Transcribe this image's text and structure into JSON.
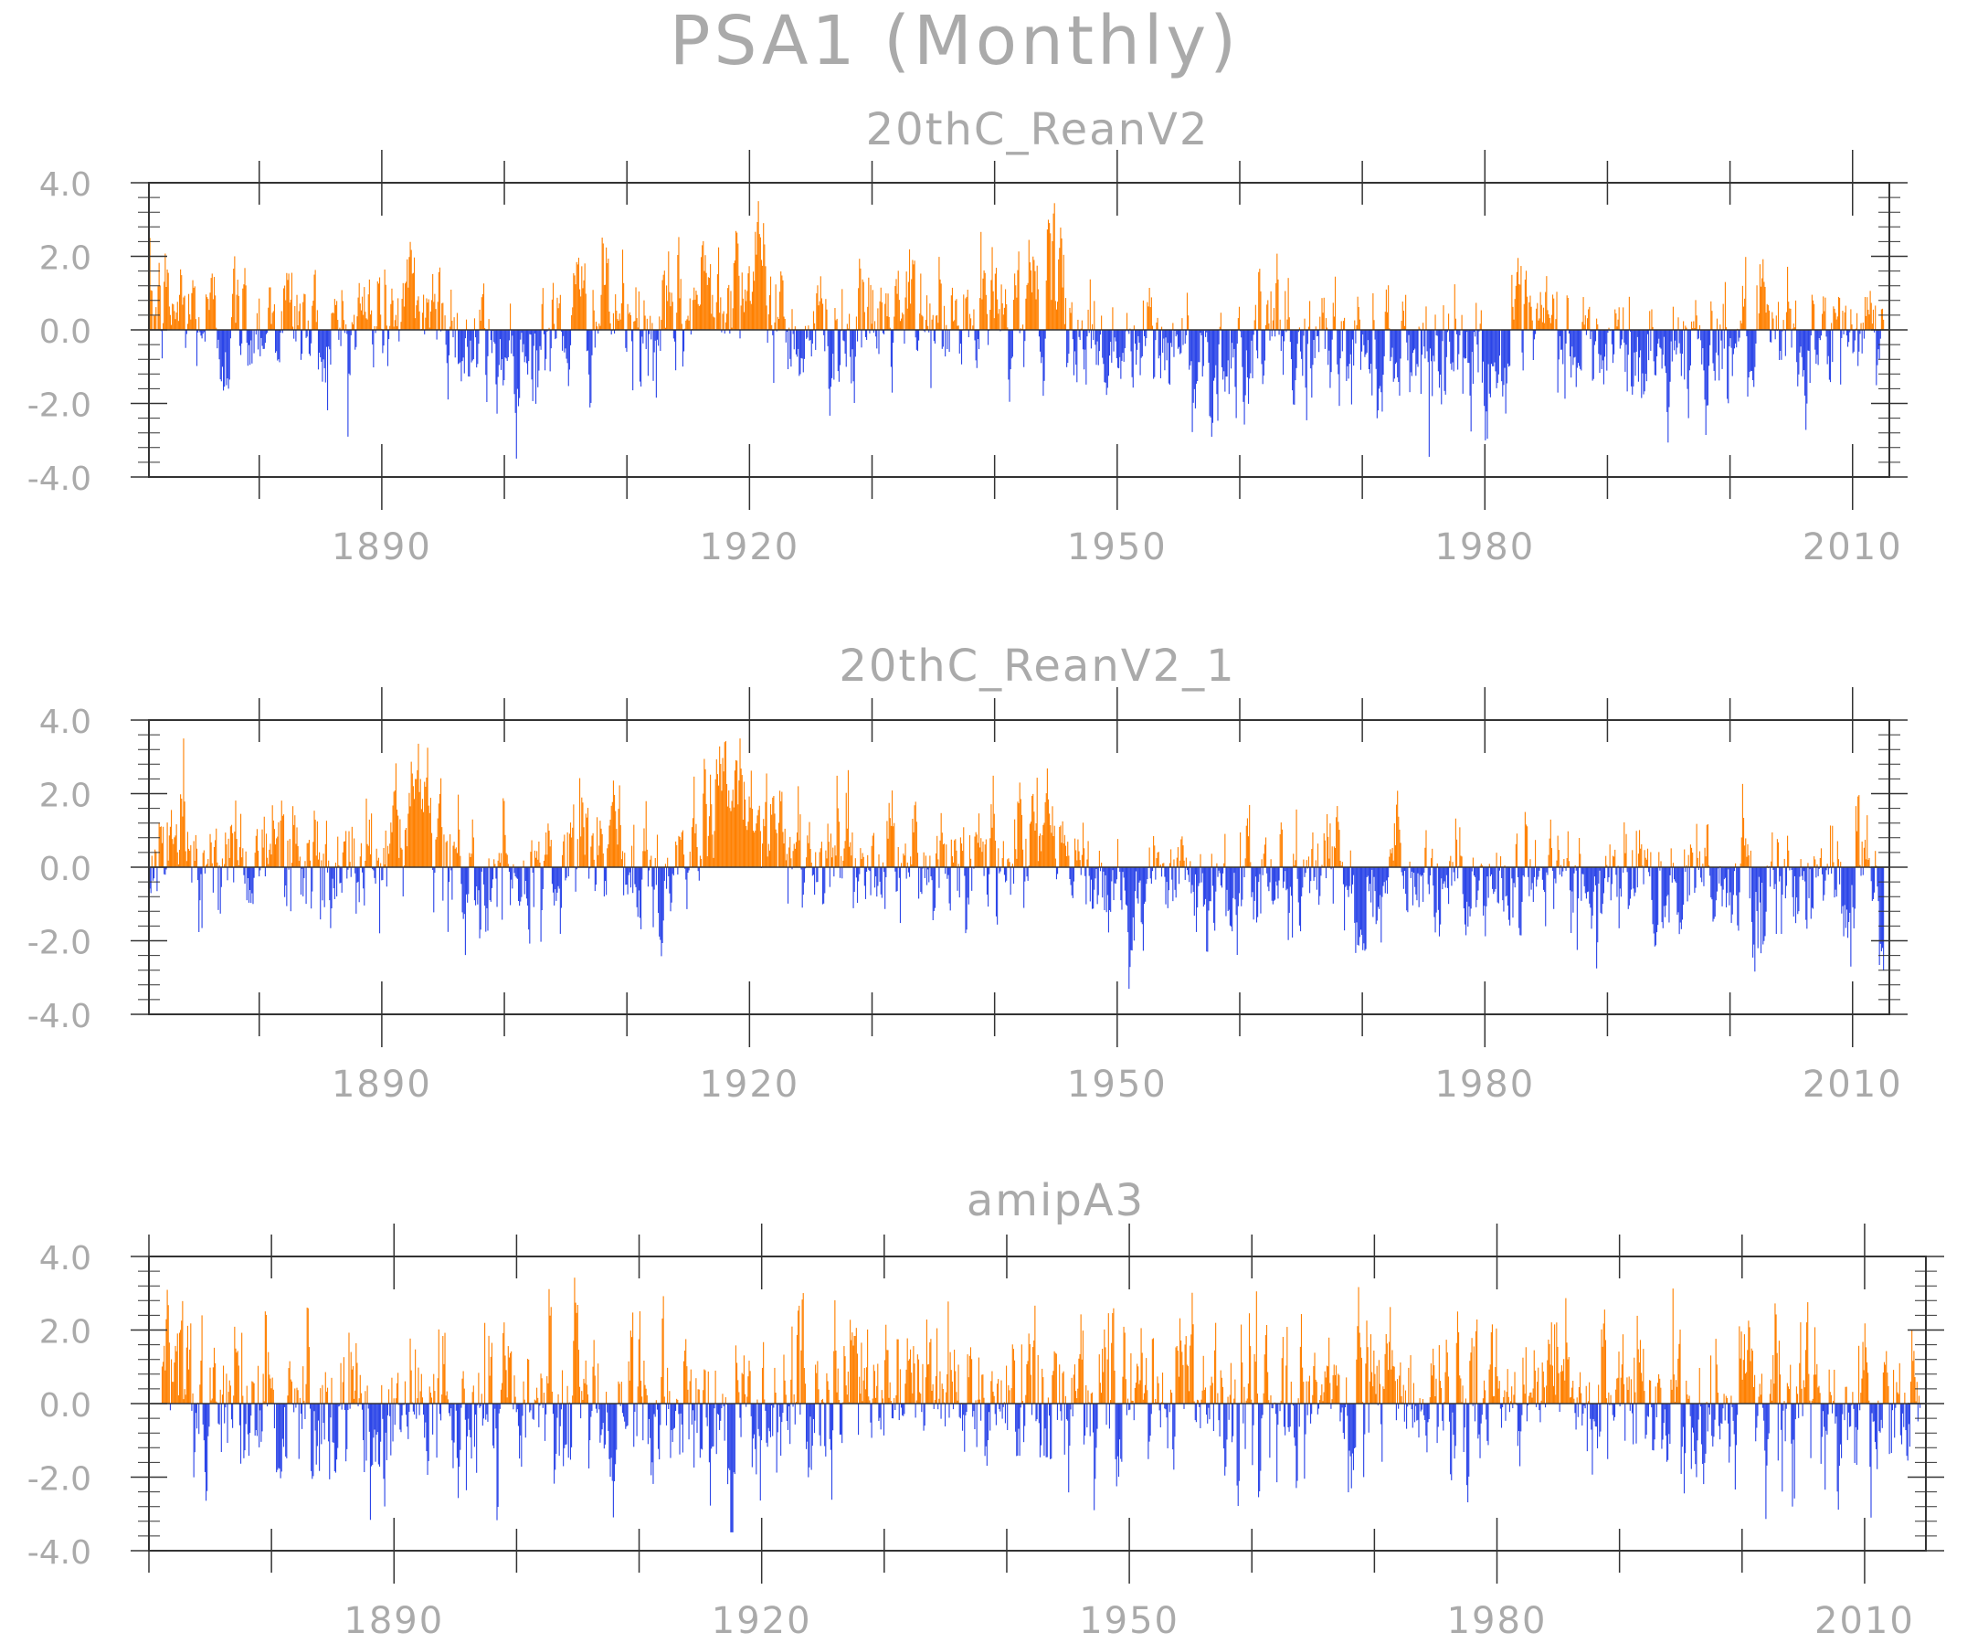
{
  "chart_data": {
    "type": "bar",
    "title": "PSA1 (Monthly)",
    "x_start": 1871,
    "x_step_years": 0.0833,
    "x_major_ticks": [
      1890,
      1920,
      1950,
      1980,
      2010
    ],
    "x_minor_tick_step": 10,
    "ylim": [
      -4.0,
      4.0
    ],
    "y_tick_labels": [
      "4.0",
      "2.0",
      "0.0",
      "-2.0",
      "-4.0"
    ],
    "colors": {
      "positive": "#ff8000",
      "negative": "#2b45e8",
      "axis": "#333333",
      "text": "#aaaaaa"
    },
    "panels": [
      {
        "title": "20thC_ReanV2",
        "xlim": [
          1871,
          2013
        ],
        "anchors": [
          [
            1871,
            0.5
          ],
          [
            1873,
            0.6
          ],
          [
            1875,
            0.4
          ],
          [
            1877,
            -0.1
          ],
          [
            1879,
            0.3
          ],
          [
            1881,
            0.5
          ],
          [
            1883,
            0.4
          ],
          [
            1885,
            -0.3
          ],
          [
            1887,
            0.1
          ],
          [
            1889,
            0.4
          ],
          [
            1891,
            0.5
          ],
          [
            1893,
            0.8
          ],
          [
            1895,
            0.6
          ],
          [
            1897,
            -0.5
          ],
          [
            1899,
            -0.7
          ],
          [
            1901,
            -0.4
          ],
          [
            1903,
            -0.4
          ],
          [
            1905,
            0.1
          ],
          [
            1907,
            0.5
          ],
          [
            1909,
            0.6
          ],
          [
            1911,
            -0.4
          ],
          [
            1913,
            -0.2
          ],
          [
            1915,
            0.5
          ],
          [
            1917,
            1.5
          ],
          [
            1919,
            1.8
          ],
          [
            1921,
            1.2
          ],
          [
            1923,
            0.2
          ],
          [
            1925,
            -0.1
          ],
          [
            1927,
            0.2
          ],
          [
            1929,
            -0.2
          ],
          [
            1931,
            0.3
          ],
          [
            1933,
            0.3
          ],
          [
            1935,
            0.2
          ],
          [
            1937,
            -0.1
          ],
          [
            1939,
            0.4
          ],
          [
            1941,
            0.6
          ],
          [
            1943,
            1.0
          ],
          [
            1945,
            0.9
          ],
          [
            1947,
            -0.1
          ],
          [
            1949,
            -0.4
          ],
          [
            1951,
            -0.7
          ],
          [
            1953,
            -0.4
          ],
          [
            1955,
            -0.5
          ],
          [
            1957,
            -0.9
          ],
          [
            1959,
            -0.6
          ],
          [
            1961,
            -0.4
          ],
          [
            1963,
            -0.3
          ],
          [
            1965,
            -0.6
          ],
          [
            1967,
            -0.3
          ],
          [
            1969,
            -0.6
          ],
          [
            1971,
            -0.4
          ],
          [
            1973,
            -0.3
          ],
          [
            1975,
            -0.4
          ],
          [
            1977,
            -0.5
          ],
          [
            1979,
            -0.6
          ],
          [
            1981,
            -1.0
          ],
          [
            1983,
            -0.4
          ],
          [
            1985,
            -0.1
          ],
          [
            1987,
            -0.4
          ],
          [
            1989,
            -0.6
          ],
          [
            1991,
            -0.5
          ],
          [
            1993,
            -0.9
          ],
          [
            1995,
            -0.7
          ],
          [
            1997,
            -0.2
          ],
          [
            1999,
            -0.4
          ],
          [
            2001,
            -0.2
          ],
          [
            2003,
            -0.6
          ],
          [
            2005,
            -0.3
          ],
          [
            2007,
            -0.5
          ],
          [
            2009,
            -0.3
          ],
          [
            2011,
            0.3
          ],
          [
            2013,
            -0.2
          ]
        ]
      },
      {
        "title": "20thC_ReanV2_1",
        "xlim": [
          1871,
          2013
        ],
        "anchors": [
          [
            1871,
            0.5
          ],
          [
            1873,
            0.6
          ],
          [
            1875,
            0.4
          ],
          [
            1877,
            -0.1
          ],
          [
            1879,
            0.3
          ],
          [
            1881,
            0.5
          ],
          [
            1883,
            0.4
          ],
          [
            1885,
            -0.3
          ],
          [
            1887,
            0.1
          ],
          [
            1889,
            0.4
          ],
          [
            1891,
            0.5
          ],
          [
            1893,
            0.8
          ],
          [
            1895,
            0.6
          ],
          [
            1897,
            -0.5
          ],
          [
            1899,
            -0.7
          ],
          [
            1901,
            -0.4
          ],
          [
            1903,
            -0.4
          ],
          [
            1905,
            0.1
          ],
          [
            1907,
            0.5
          ],
          [
            1909,
            0.6
          ],
          [
            1911,
            -0.4
          ],
          [
            1913,
            -0.2
          ],
          [
            1915,
            0.5
          ],
          [
            1917,
            1.5
          ],
          [
            1919,
            1.8
          ],
          [
            1921,
            1.2
          ],
          [
            1923,
            0.2
          ],
          [
            1925,
            -0.1
          ],
          [
            1927,
            0.2
          ],
          [
            1929,
            -0.2
          ],
          [
            1931,
            0.3
          ],
          [
            1933,
            0.3
          ],
          [
            1935,
            0.2
          ],
          [
            1937,
            -0.1
          ],
          [
            1939,
            0.4
          ],
          [
            1941,
            0.6
          ],
          [
            1943,
            1.0
          ],
          [
            1945,
            0.9
          ],
          [
            1947,
            -0.1
          ],
          [
            1949,
            -0.4
          ],
          [
            1951,
            -0.7
          ],
          [
            1953,
            -0.4
          ],
          [
            1955,
            -0.5
          ],
          [
            1957,
            -0.9
          ],
          [
            1959,
            -0.6
          ],
          [
            1961,
            -0.4
          ],
          [
            1963,
            -0.3
          ],
          [
            1965,
            -0.6
          ],
          [
            1967,
            -0.3
          ],
          [
            1969,
            -0.6
          ],
          [
            1971,
            -0.4
          ],
          [
            1973,
            -0.3
          ],
          [
            1975,
            -0.4
          ],
          [
            1977,
            -0.5
          ],
          [
            1979,
            -0.6
          ],
          [
            1981,
            -1.0
          ],
          [
            1983,
            -0.4
          ],
          [
            1985,
            -0.1
          ],
          [
            1987,
            -0.4
          ],
          [
            1989,
            -0.6
          ],
          [
            1991,
            -0.5
          ],
          [
            1993,
            -0.9
          ],
          [
            1995,
            -0.7
          ],
          [
            1997,
            -0.2
          ],
          [
            1999,
            -0.4
          ],
          [
            2001,
            -0.2
          ],
          [
            2003,
            -0.6
          ],
          [
            2005,
            -0.3
          ],
          [
            2007,
            -0.5
          ],
          [
            2009,
            -0.3
          ],
          [
            2011,
            0.3
          ],
          [
            2013,
            -0.2
          ]
        ]
      },
      {
        "title": "amipA3",
        "xlim": [
          1870,
          2015
        ],
        "anchors": [
          [
            1871,
            0.1
          ],
          [
            1874,
            0.0
          ],
          [
            1877,
            -0.1
          ],
          [
            1880,
            0.1
          ],
          [
            1883,
            -0.1
          ],
          [
            1886,
            0.1
          ],
          [
            1889,
            0.0
          ],
          [
            1892,
            0.1
          ],
          [
            1895,
            -0.1
          ],
          [
            1898,
            0.0
          ],
          [
            1901,
            0.1
          ],
          [
            1904,
            -0.1
          ],
          [
            1907,
            0.1
          ],
          [
            1910,
            0.0
          ],
          [
            1913,
            0.1
          ],
          [
            1916,
            -0.1
          ],
          [
            1919,
            0.0
          ],
          [
            1922,
            0.1
          ],
          [
            1925,
            0.0
          ],
          [
            1928,
            0.1
          ],
          [
            1931,
            -0.1
          ],
          [
            1934,
            0.1
          ],
          [
            1937,
            0.0
          ],
          [
            1940,
            -0.2
          ],
          [
            1943,
            0.1
          ],
          [
            1946,
            0.0
          ],
          [
            1949,
            0.1
          ],
          [
            1952,
            -0.1
          ],
          [
            1955,
            0.1
          ],
          [
            1958,
            -0.1
          ],
          [
            1961,
            0.1
          ],
          [
            1964,
            0.0
          ],
          [
            1967,
            0.1
          ],
          [
            1970,
            0.0
          ],
          [
            1973,
            0.1
          ],
          [
            1976,
            -0.1
          ],
          [
            1979,
            0.1
          ],
          [
            1982,
            0.0
          ],
          [
            1985,
            0.1
          ],
          [
            1988,
            0.1
          ],
          [
            1991,
            0.0
          ],
          [
            1994,
            -0.1
          ],
          [
            1997,
            0.1
          ],
          [
            2000,
            0.1
          ],
          [
            2003,
            0.0
          ],
          [
            2006,
            0.1
          ],
          [
            2009,
            0.0
          ],
          [
            2012,
            -0.1
          ],
          [
            2014,
            0.1
          ]
        ]
      }
    ]
  }
}
